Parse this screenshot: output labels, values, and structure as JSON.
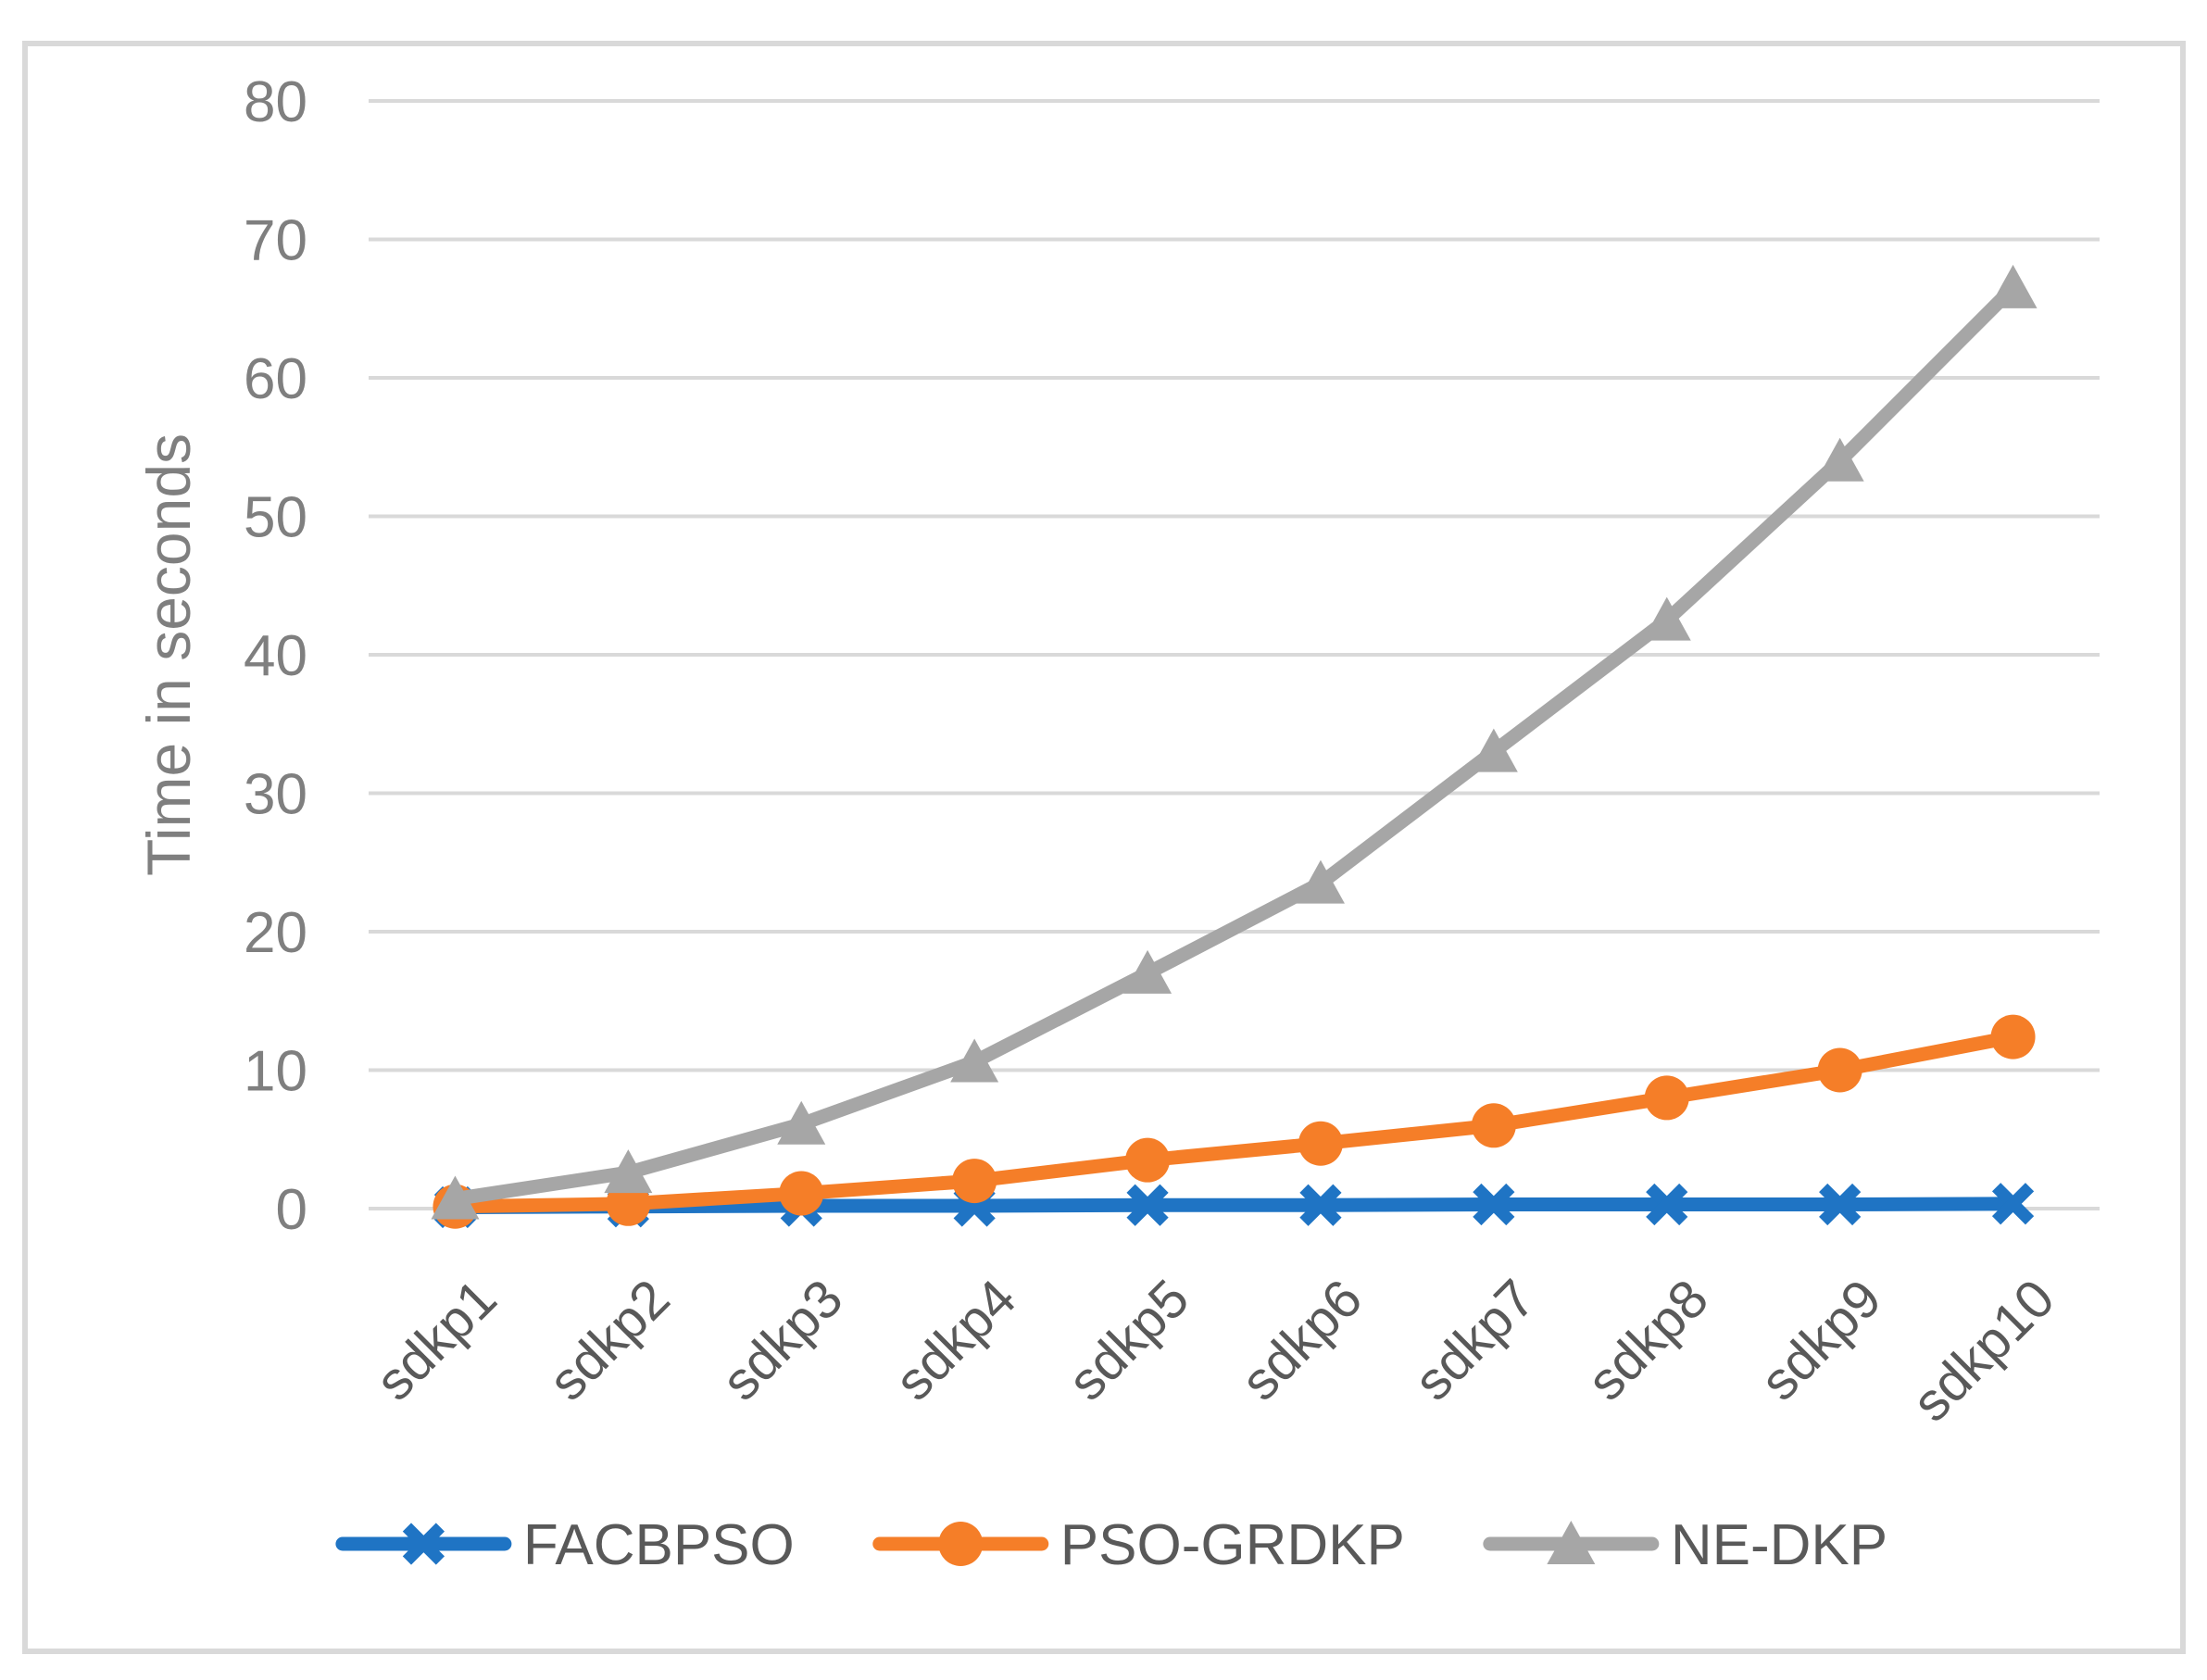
{
  "chart_data": {
    "type": "line",
    "title": "",
    "xlabel": "",
    "ylabel": "Time in seconds",
    "ylim": [
      0,
      80
    ],
    "ytick_step": 10,
    "grid": "horizontal",
    "legend_position": "bottom",
    "categories": [
      "sdkp1",
      "sdkp2",
      "sdkp3",
      "sdkp4",
      "sdkp5",
      "sdkp6",
      "sdkp7",
      "sdkp8",
      "sdkp9",
      "sdkp10"
    ],
    "series": [
      {
        "name": "FACBPSO",
        "marker": "x",
        "color": "#1f74c4",
        "values": [
          0.1,
          0.15,
          0.2,
          0.2,
          0.25,
          0.25,
          0.3,
          0.3,
          0.3,
          0.35
        ]
      },
      {
        "name": "PSO-GRDKP",
        "marker": "circle",
        "color": "#f57e28",
        "values": [
          0.15,
          0.35,
          1.1,
          2.0,
          3.5,
          4.7,
          6.0,
          8.0,
          10.0,
          12.4
        ]
      },
      {
        "name": "NE-DKP",
        "marker": "triangle",
        "color": "#a6a6a6",
        "values": [
          0.7,
          2.6,
          6.1,
          10.6,
          17.0,
          23.5,
          33.0,
          42.5,
          54.0,
          66.5
        ]
      }
    ]
  },
  "style": {
    "gridline_color": "#d9d9d9",
    "border_color": "#d9d9d9",
    "ytick_color": "#7f7f7f",
    "xtick_color": "#595959",
    "axis_title_color": "#7f7f7f",
    "legend_text_color": "#595959",
    "background_color": "#ffffff"
  }
}
